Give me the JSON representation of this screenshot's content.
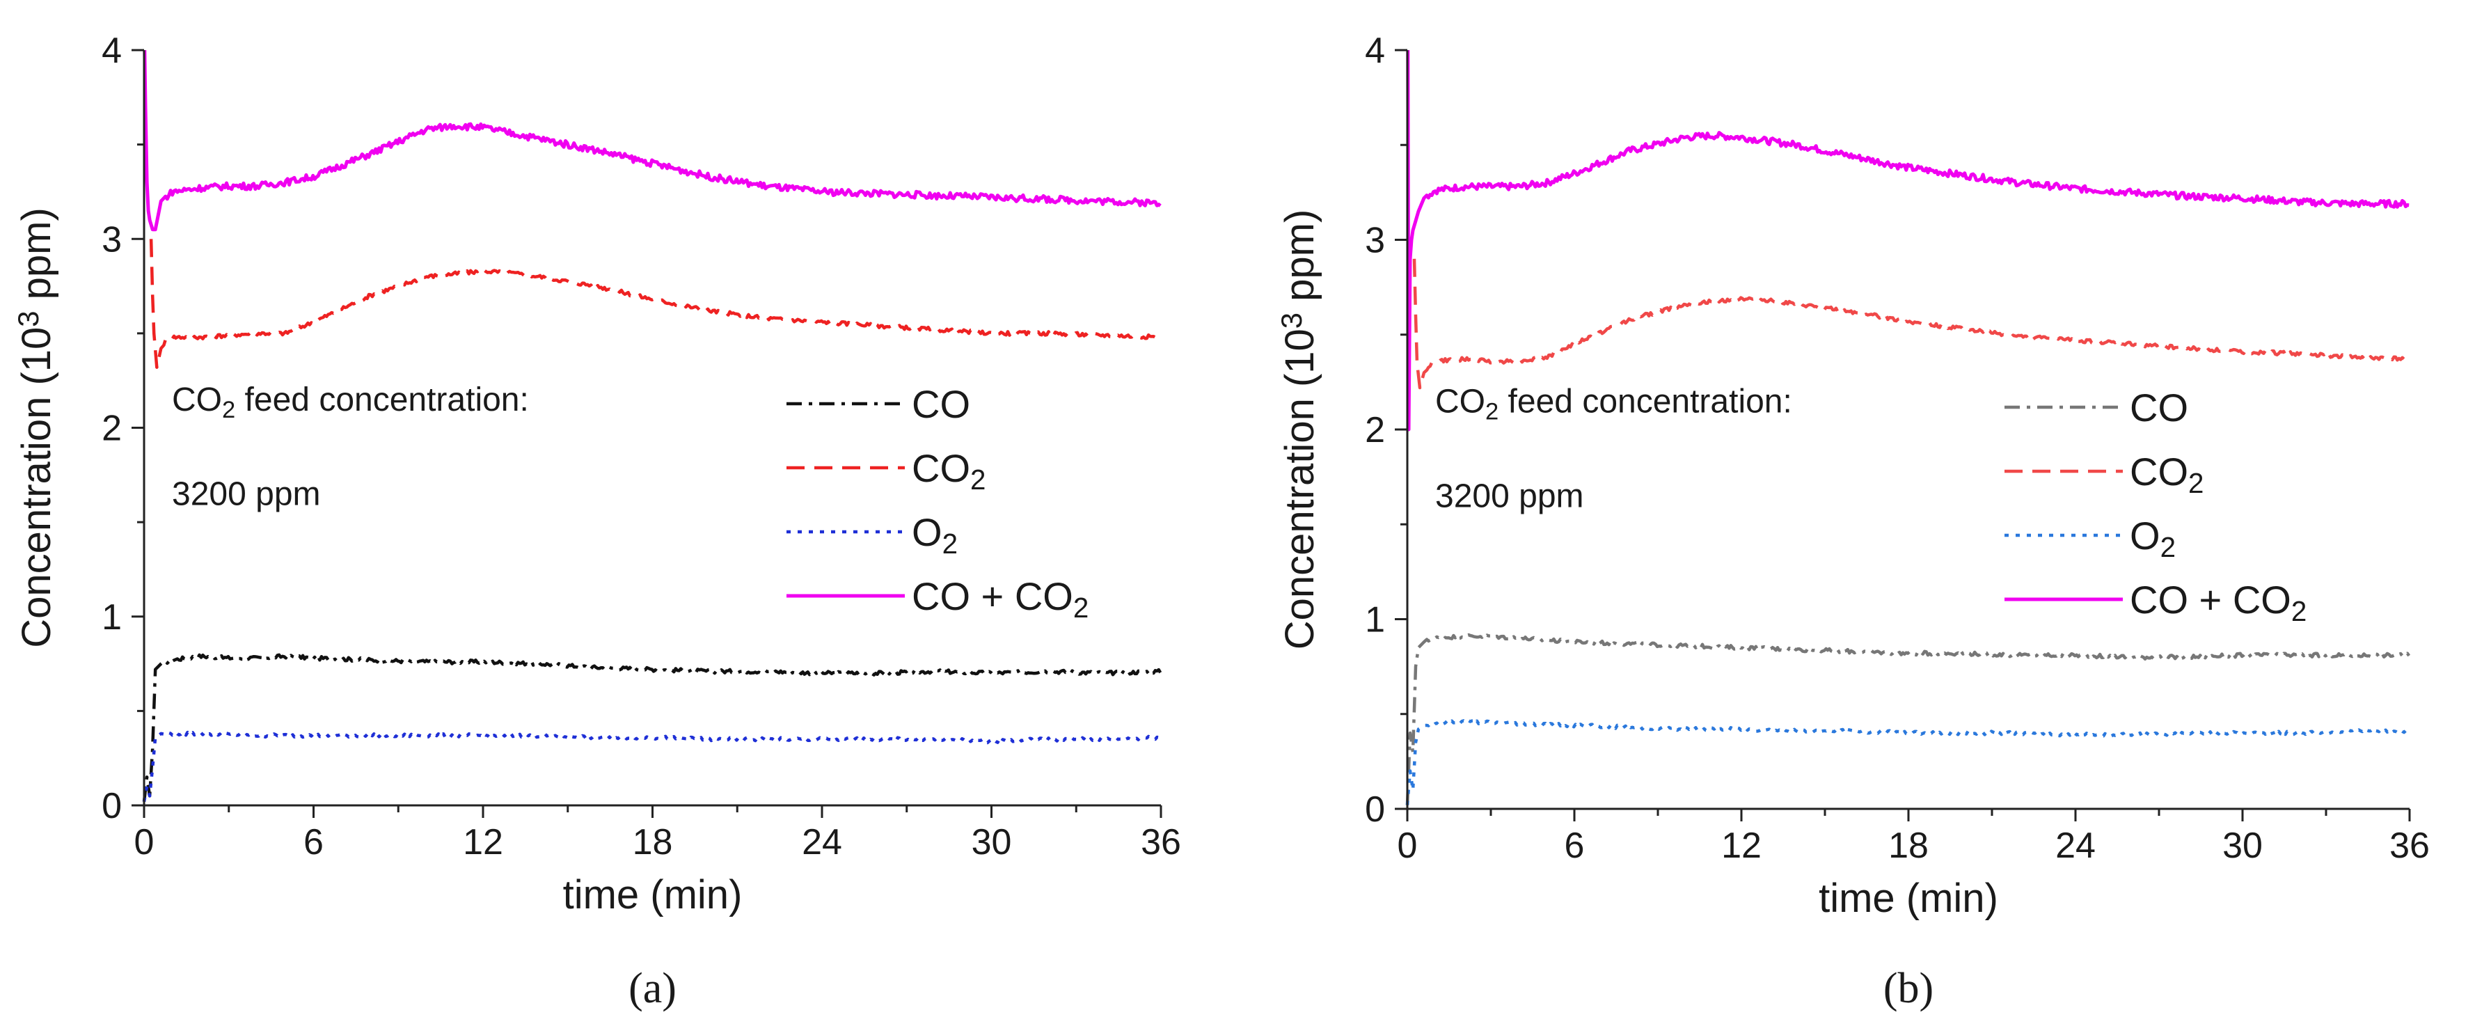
{
  "chart_data": [
    {
      "type": "line",
      "panel_label": "(a)",
      "xlabel": "time (min)",
      "ylabel": {
        "pre": "Concentration (10",
        "sup": "3",
        "post": " ppm)"
      },
      "xlim": [
        0,
        36
      ],
      "ylim": [
        0,
        4
      ],
      "xticks": [
        0,
        6,
        12,
        18,
        24,
        30,
        36
      ],
      "yticks": [
        0,
        1,
        2,
        3,
        4
      ],
      "annotation": {
        "line1": {
          "pre": "CO",
          "sub": "2",
          "post": " feed concentration:"
        },
        "line2": "3200 ppm"
      },
      "legend_position": "center-right",
      "series": [
        {
          "name": "CO",
          "label": {
            "pre": "CO"
          },
          "color": "#111111",
          "style": "dashdot",
          "x": [
            0,
            0.1,
            0.2,
            0.3,
            0.4,
            0.6,
            1,
            2,
            3,
            4,
            5,
            6,
            8,
            10,
            12,
            14,
            16,
            18,
            20,
            22,
            24,
            26,
            28,
            30,
            32,
            34,
            36
          ],
          "y": [
            0.02,
            0.15,
            0.05,
            0.3,
            0.72,
            0.75,
            0.77,
            0.79,
            0.78,
            0.78,
            0.79,
            0.78,
            0.77,
            0.76,
            0.76,
            0.75,
            0.73,
            0.72,
            0.71,
            0.71,
            0.7,
            0.7,
            0.71,
            0.7,
            0.71,
            0.7,
            0.71
          ]
        },
        {
          "name": "CO2",
          "label": {
            "pre": "CO",
            "sub": "2"
          },
          "color": "#ee2222",
          "style": "dashed",
          "x": [
            0.25,
            0.3,
            0.35,
            0.45,
            0.6,
            0.8,
            1,
            2,
            3,
            4,
            5,
            6,
            8,
            10,
            12,
            13,
            14,
            16,
            18,
            20,
            22,
            24,
            26,
            28,
            30,
            32,
            34,
            36
          ],
          "y": [
            3.0,
            2.7,
            2.5,
            2.32,
            2.42,
            2.47,
            2.48,
            2.48,
            2.49,
            2.5,
            2.5,
            2.56,
            2.7,
            2.8,
            2.83,
            2.82,
            2.8,
            2.75,
            2.68,
            2.62,
            2.58,
            2.56,
            2.54,
            2.52,
            2.5,
            2.5,
            2.49,
            2.48
          ]
        },
        {
          "name": "O2",
          "label": {
            "pre": "O",
            "sub": "2"
          },
          "color": "#1e2fd6",
          "style": "dotted",
          "x": [
            0,
            0.1,
            0.2,
            0.3,
            0.4,
            0.6,
            1,
            2,
            4,
            6,
            8,
            10,
            12,
            14,
            16,
            18,
            20,
            22,
            24,
            26,
            28,
            30,
            32,
            34,
            36
          ],
          "y": [
            0.02,
            0.1,
            0.05,
            0.2,
            0.36,
            0.38,
            0.38,
            0.38,
            0.37,
            0.37,
            0.37,
            0.37,
            0.37,
            0.37,
            0.36,
            0.36,
            0.35,
            0.35,
            0.35,
            0.35,
            0.35,
            0.34,
            0.35,
            0.35,
            0.36
          ]
        },
        {
          "name": "CO + CO2",
          "label": {
            "pre": "CO + CO",
            "sub": "2"
          },
          "color": "#f000f0",
          "style": "solid",
          "x": [
            0.02,
            0.05,
            0.1,
            0.15,
            0.2,
            0.3,
            0.4,
            0.6,
            1,
            2,
            3,
            4,
            5,
            6,
            8,
            10,
            11,
            12,
            14,
            16,
            18,
            20,
            22,
            24,
            26,
            28,
            30,
            32,
            34,
            36
          ],
          "y": [
            4.0,
            3.7,
            3.3,
            3.15,
            3.1,
            3.05,
            3.05,
            3.2,
            3.25,
            3.27,
            3.28,
            3.28,
            3.3,
            3.33,
            3.45,
            3.58,
            3.6,
            3.59,
            3.53,
            3.47,
            3.4,
            3.33,
            3.28,
            3.25,
            3.24,
            3.23,
            3.22,
            3.21,
            3.2,
            3.19
          ]
        }
      ]
    },
    {
      "type": "line",
      "panel_label": "(b)",
      "xlabel": "time (min)",
      "ylabel": {
        "pre": "Concentration (10",
        "sup": "3",
        "post": " ppm)"
      },
      "xlim": [
        0,
        36
      ],
      "ylim": [
        0,
        4
      ],
      "xticks": [
        0,
        6,
        12,
        18,
        24,
        30,
        36
      ],
      "yticks": [
        0,
        1,
        2,
        3,
        4
      ],
      "annotation": {
        "line1": {
          "pre": "CO",
          "sub": "2",
          "post": " feed concentration:"
        },
        "line2": "3200 ppm"
      },
      "legend_position": "center-right",
      "series": [
        {
          "name": "CO",
          "label": {
            "pre": "CO"
          },
          "color": "#777777",
          "style": "dashdot",
          "x": [
            0,
            0.1,
            0.2,
            0.3,
            0.4,
            0.6,
            1,
            2,
            3,
            4,
            5,
            6,
            8,
            10,
            12,
            14,
            16,
            18,
            20,
            22,
            24,
            26,
            28,
            30,
            32,
            34,
            36
          ],
          "y": [
            0.02,
            0.4,
            0.3,
            0.75,
            0.85,
            0.88,
            0.9,
            0.91,
            0.91,
            0.9,
            0.89,
            0.88,
            0.87,
            0.86,
            0.85,
            0.84,
            0.83,
            0.82,
            0.82,
            0.81,
            0.81,
            0.8,
            0.8,
            0.81,
            0.81,
            0.81,
            0.81
          ]
        },
        {
          "name": "CO2",
          "label": {
            "pre": "CO",
            "sub": "2"
          },
          "color": "#f04848",
          "style": "dashed",
          "x": [
            0.25,
            0.3,
            0.35,
            0.45,
            0.6,
            0.8,
            1,
            2,
            3,
            4,
            5,
            6,
            8,
            10,
            12,
            13,
            14,
            16,
            18,
            20,
            22,
            24,
            26,
            28,
            30,
            32,
            34,
            36
          ],
          "y": [
            2.9,
            2.6,
            2.35,
            2.22,
            2.3,
            2.34,
            2.36,
            2.37,
            2.36,
            2.36,
            2.38,
            2.45,
            2.58,
            2.66,
            2.69,
            2.68,
            2.66,
            2.62,
            2.57,
            2.53,
            2.49,
            2.47,
            2.45,
            2.43,
            2.41,
            2.4,
            2.38,
            2.37
          ]
        },
        {
          "name": "O2",
          "label": {
            "pre": "O",
            "sub": "2"
          },
          "color": "#2a78dc",
          "style": "dotted",
          "x": [
            0,
            0.1,
            0.2,
            0.3,
            0.4,
            0.6,
            1,
            2,
            4,
            6,
            8,
            10,
            12,
            14,
            16,
            18,
            20,
            22,
            24,
            26,
            28,
            30,
            32,
            34,
            36
          ],
          "y": [
            0.02,
            0.2,
            0.1,
            0.35,
            0.42,
            0.44,
            0.45,
            0.46,
            0.45,
            0.44,
            0.43,
            0.42,
            0.42,
            0.41,
            0.41,
            0.4,
            0.4,
            0.4,
            0.39,
            0.39,
            0.4,
            0.4,
            0.4,
            0.41,
            0.41
          ]
        },
        {
          "name": "CO + CO2",
          "label": {
            "pre": "CO + CO",
            "sub": "2"
          },
          "color": "#f000f0",
          "style": "solid",
          "x": [
            0.02,
            0.05,
            0.1,
            0.15,
            0.2,
            0.3,
            0.4,
            0.6,
            1,
            2,
            3,
            4,
            5,
            6,
            8,
            10,
            11,
            12,
            14,
            16,
            18,
            20,
            22,
            24,
            26,
            28,
            30,
            32,
            34,
            36
          ],
          "y": [
            4.0,
            2.0,
            2.9,
            3.0,
            3.05,
            3.1,
            3.15,
            3.22,
            3.26,
            3.28,
            3.28,
            3.28,
            3.3,
            3.35,
            3.47,
            3.54,
            3.55,
            3.54,
            3.5,
            3.44,
            3.38,
            3.34,
            3.3,
            3.27,
            3.25,
            3.23,
            3.22,
            3.2,
            3.19,
            3.19
          ]
        }
      ]
    }
  ]
}
